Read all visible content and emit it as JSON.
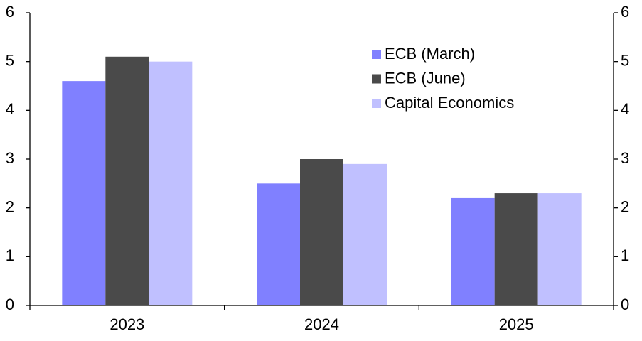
{
  "chart_data": {
    "type": "bar",
    "categories": [
      "2023",
      "2024",
      "2025"
    ],
    "series": [
      {
        "name": "ECB (March)",
        "color": "#8080ff",
        "values": [
          4.6,
          2.5,
          2.2
        ]
      },
      {
        "name": "ECB (June)",
        "color": "#4a4a4a",
        "values": [
          5.1,
          3.0,
          2.3
        ]
      },
      {
        "name": "Capital Economics",
        "color": "#c0c0ff",
        "values": [
          5.0,
          2.9,
          2.3
        ]
      }
    ],
    "ylim": [
      0,
      6
    ],
    "yticks": [
      0,
      1,
      2,
      3,
      4,
      5,
      6
    ],
    "y2lim": [
      0,
      6
    ],
    "y2ticks": [
      0,
      1,
      2,
      3,
      4,
      5,
      6
    ],
    "grid": false,
    "legend": "upper right"
  }
}
